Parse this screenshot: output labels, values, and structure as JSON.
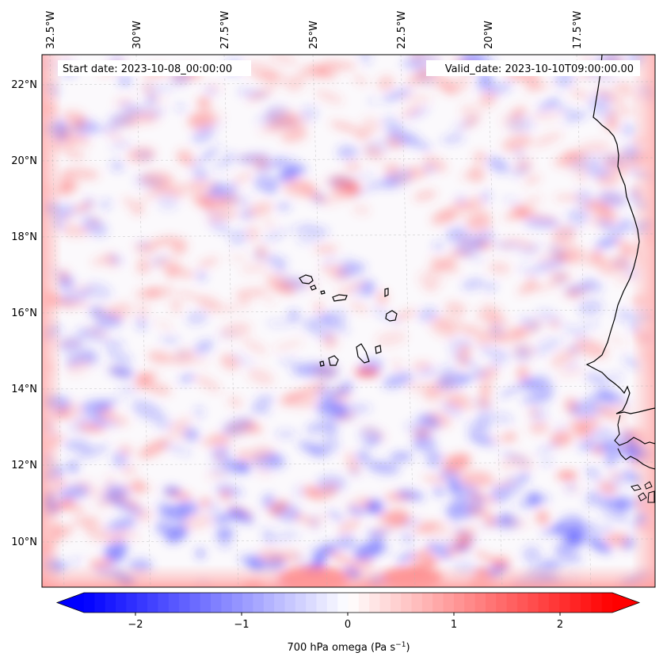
{
  "map": {
    "start_date_label": "Start date: 2023-10-08_00:00:00",
    "valid_date_label": "Valid_date: 2023-10-10T09:00:00.00",
    "lon_labels": [
      "32.5°W",
      "30°W",
      "27.5°W",
      "25°W",
      "22.5°W",
      "20°W",
      "17.5°W"
    ],
    "lat_labels": [
      "22°N",
      "20°N",
      "18°N",
      "16°N",
      "14°N",
      "12°N",
      "10°N"
    ],
    "field": "700 hPa omega",
    "extent": {
      "lon_min": -33.0,
      "lon_max": -15.3,
      "lat_min": 8.9,
      "lat_max": 22.8
    }
  },
  "colorbar": {
    "label": "700 hPa omega (Pa s",
    "label_sup": "−1",
    "label_close": ")",
    "ticks": [
      "−2",
      "−1",
      "0",
      "1",
      "2"
    ],
    "vmin": -2.6,
    "vmax": 2.6,
    "extend": "both",
    "colors": {
      "negative": "#0000ff",
      "zero": "#ffffff",
      "positive": "#ff0000"
    }
  }
}
